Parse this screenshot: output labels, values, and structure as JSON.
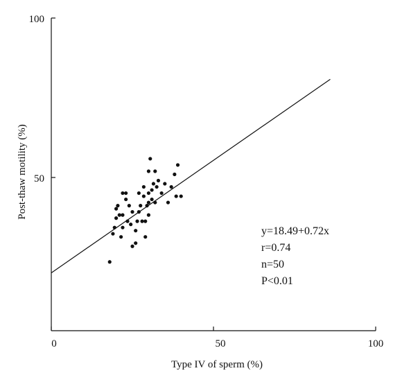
{
  "chart_data": {
    "type": "scatter",
    "title": "",
    "xlabel": "Type IV of sperm (%)",
    "ylabel": "Post-thaw motility (%)",
    "xlim": [
      0,
      100
    ],
    "ylim": [
      0,
      100
    ],
    "x_ticks": [
      "0",
      "50",
      "100"
    ],
    "y_ticks": [
      "50",
      "100"
    ],
    "grid": false,
    "legend": "none",
    "point_color": "#111111",
    "line_color": "#111111",
    "series": [
      {
        "points": [
          [
            18,
            22
          ],
          [
            19,
            31
          ],
          [
            19.5,
            33
          ],
          [
            20,
            36
          ],
          [
            20,
            39
          ],
          [
            20.5,
            40
          ],
          [
            21,
            37
          ],
          [
            21.5,
            30
          ],
          [
            22,
            33
          ],
          [
            22,
            37
          ],
          [
            22,
            44
          ],
          [
            23,
            44
          ],
          [
            23,
            42
          ],
          [
            23.5,
            35
          ],
          [
            24,
            40
          ],
          [
            24.5,
            34
          ],
          [
            25,
            27
          ],
          [
            25,
            38
          ],
          [
            26,
            28
          ],
          [
            26,
            32
          ],
          [
            26.5,
            35
          ],
          [
            27,
            44
          ],
          [
            27,
            38
          ],
          [
            27.5,
            40
          ],
          [
            28,
            35
          ],
          [
            28.5,
            43
          ],
          [
            28.5,
            46
          ],
          [
            29,
            30
          ],
          [
            29,
            35
          ],
          [
            29.5,
            40
          ],
          [
            30,
            37
          ],
          [
            30,
            41
          ],
          [
            30,
            44
          ],
          [
            30,
            51
          ],
          [
            30.5,
            55
          ],
          [
            31,
            42
          ],
          [
            31,
            45
          ],
          [
            31.5,
            47
          ],
          [
            32,
            41
          ],
          [
            32,
            51
          ],
          [
            32.5,
            46
          ],
          [
            33,
            48
          ],
          [
            34,
            44
          ],
          [
            35,
            47
          ],
          [
            36,
            41
          ],
          [
            37,
            46
          ],
          [
            38,
            50
          ],
          [
            38.5,
            43
          ],
          [
            39,
            53
          ],
          [
            40,
            43
          ]
        ]
      }
    ],
    "trendline": {
      "x": [
        0,
        86
      ],
      "y": [
        18.49,
        80.41
      ]
    },
    "annotations": [
      "y=18.49+0.72x",
      "r=0.74",
      "n=50",
      "P<0.01"
    ]
  }
}
